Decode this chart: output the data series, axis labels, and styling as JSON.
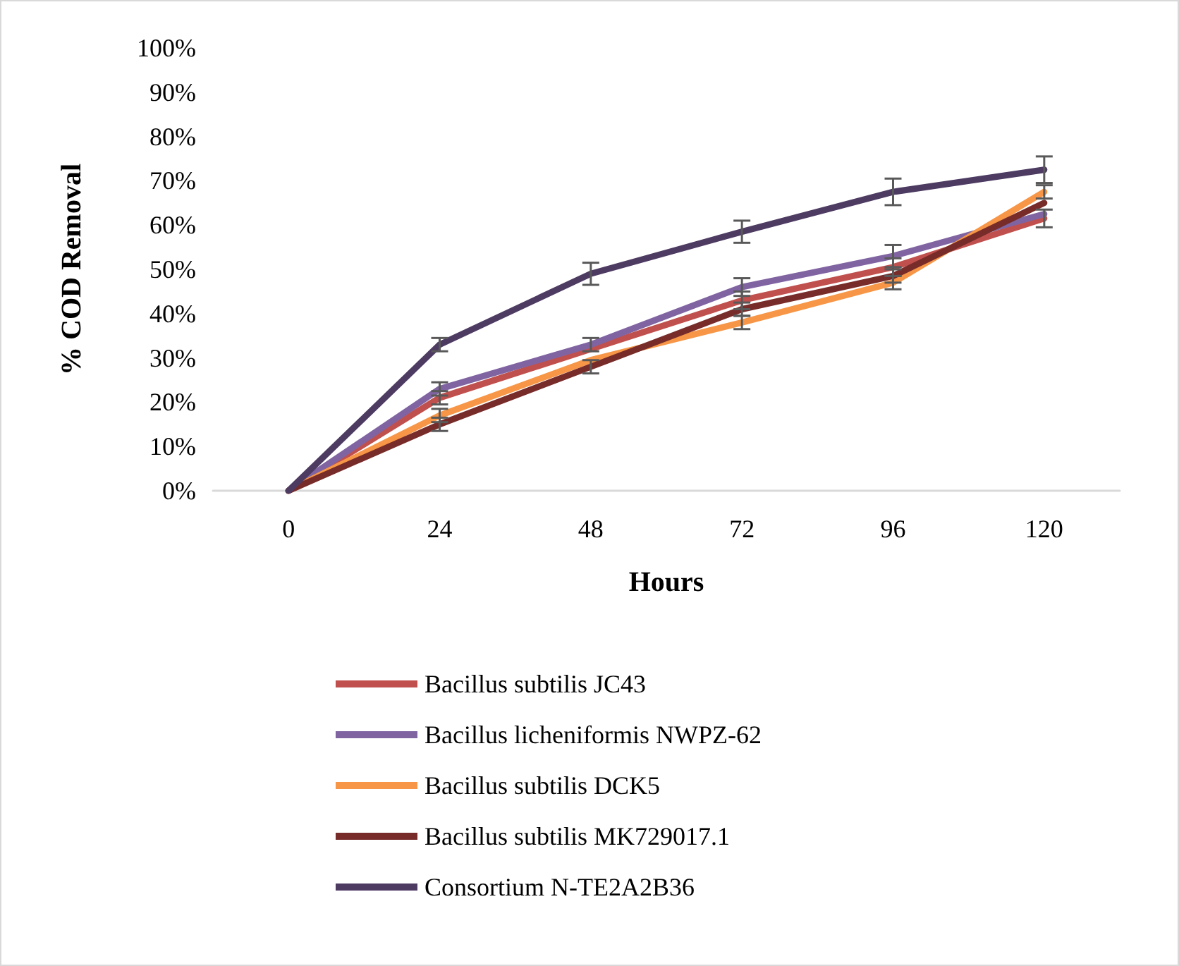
{
  "chart_data": {
    "type": "line",
    "xlabel": "Hours",
    "ylabel": "% COD Removal",
    "categories": [
      "0",
      "24",
      "48",
      "72",
      "96",
      "120"
    ],
    "series": [
      {
        "name": "Bacillus subtilis JC43",
        "color": "#c0504d",
        "values": [
          0,
          21,
          32,
          43,
          50.5,
          61.5
        ],
        "errors": [
          0,
          1.5,
          null,
          2,
          2,
          2
        ]
      },
      {
        "name": "Bacillus licheniformis NWPZ-62",
        "color": "#8064a2",
        "values": [
          0,
          23,
          33,
          46,
          53,
          62.5
        ],
        "errors": [
          0,
          1.5,
          1.5,
          2,
          2.5,
          null
        ]
      },
      {
        "name": "Bacillus subtilis DCK5",
        "color": "#f79646",
        "values": [
          0,
          17,
          29.5,
          38,
          47,
          67.5
        ],
        "errors": [
          0,
          1.5,
          null,
          1.5,
          1.5,
          1.5
        ]
      },
      {
        "name": "Bacillus subtilis MK729017.1",
        "color": "#772c2a",
        "values": [
          0,
          15,
          28,
          41,
          48.5,
          65
        ],
        "errors": [
          0,
          1.5,
          1.5,
          1.5,
          1.5,
          null
        ]
      },
      {
        "name": "Consortium N-TE2A2B36",
        "color": "#4d3b62",
        "values": [
          0,
          33,
          49,
          58.5,
          67.5,
          72.5
        ],
        "errors": [
          0,
          1.5,
          2.5,
          2.5,
          3,
          3
        ]
      }
    ],
    "ylim": [
      0,
      100
    ],
    "yticks": [
      {
        "value": 0,
        "label": "0%"
      },
      {
        "value": 10,
        "label": "10%"
      },
      {
        "value": 20,
        "label": "20%"
      },
      {
        "value": 30,
        "label": "30%"
      },
      {
        "value": 40,
        "label": "40%"
      },
      {
        "value": 50,
        "label": "50%"
      },
      {
        "value": 60,
        "label": "60%"
      },
      {
        "value": 70,
        "label": "70%"
      },
      {
        "value": 80,
        "label": "80%"
      },
      {
        "value": 90,
        "label": "90%"
      },
      {
        "value": 100,
        "label": "100%"
      }
    ],
    "grid": false,
    "legend": "bottom",
    "marker": "none",
    "line_style": "solid"
  }
}
